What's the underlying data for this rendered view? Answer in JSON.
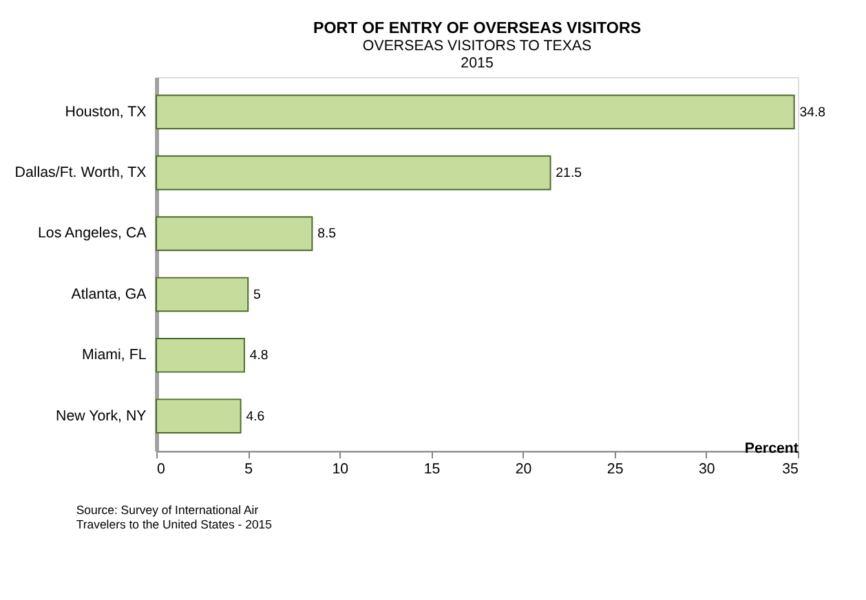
{
  "chart_data": {
    "type": "bar",
    "orientation": "horizontal",
    "title": "PORT OF ENTRY OF OVERSEAS VISITORS",
    "subtitle": "OVERSEAS VISITORS  TO TEXAS\n2015",
    "xlabel": "Percent",
    "categories": [
      "Houston, TX",
      "Dallas/Ft. Worth, TX",
      "Los Angeles, CA",
      "Atlanta, GA",
      "Miami, FL",
      "New York, NY"
    ],
    "values": [
      34.8,
      21.5,
      8.5,
      5,
      4.8,
      4.6
    ],
    "color": "#c6dc9c",
    "xlim": [
      0,
      35
    ],
    "xticks": [
      0,
      5,
      10,
      15,
      20,
      25,
      30,
      35
    ],
    "grid": false,
    "data_labels": true,
    "annotations": [
      "Source: Survey of International Air\nTravelers to the United States - 2015"
    ]
  }
}
